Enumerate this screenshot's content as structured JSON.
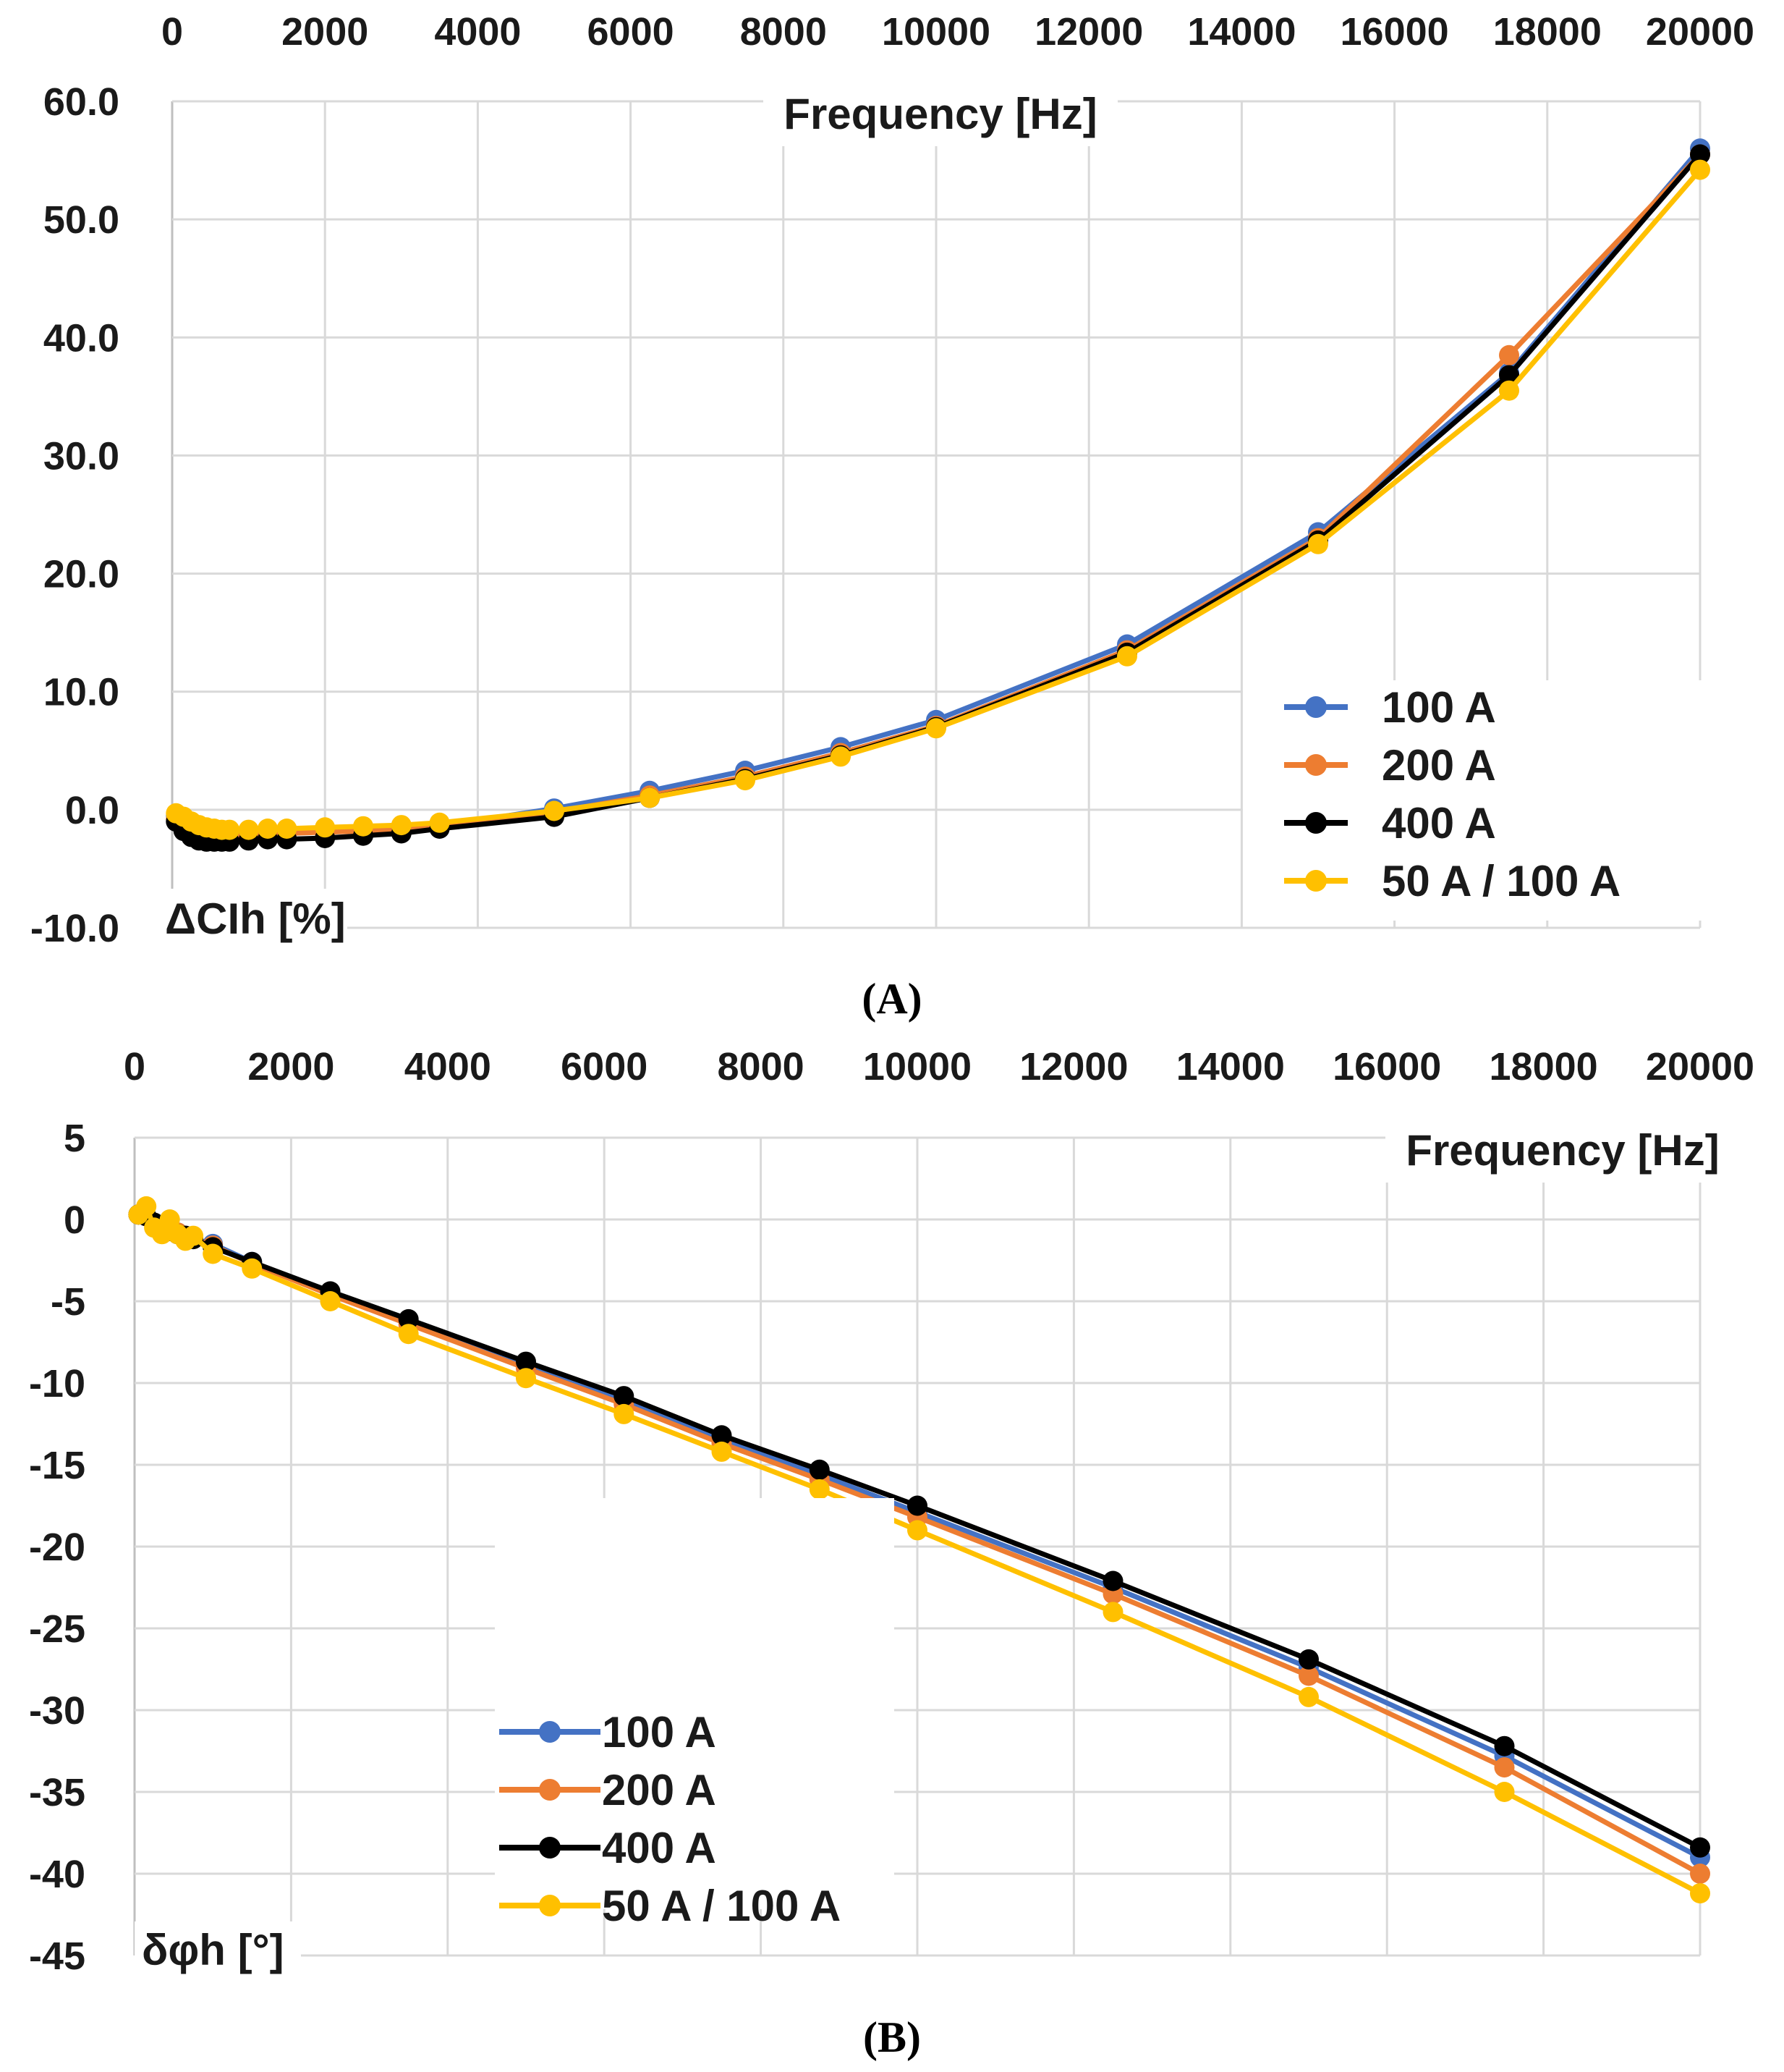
{
  "chart_data": [
    {
      "type": "line",
      "panel_label": "(A)",
      "xlabel": "Frequency [Hz]",
      "ylabel": "ΔCIh [%]",
      "xlim": [
        0,
        20000
      ],
      "ylim": [
        -10,
        60
      ],
      "x_ticks": [
        "0",
        "2000",
        "4000",
        "6000",
        "8000",
        "10000",
        "12000",
        "14000",
        "16000",
        "18000",
        "20000"
      ],
      "y_ticks": [
        "60.0",
        "50.0",
        "40.0",
        "30.0",
        "20.0",
        "10.0",
        "0.0",
        "-10.0"
      ],
      "legend_position": "bottom-right",
      "series": [
        {
          "name": "100 A",
          "color": "#4472C4",
          "x": [
            50,
            150,
            250,
            350,
            450,
            550,
            650,
            750,
            1000,
            1250,
            1500,
            2000,
            2500,
            3000,
            3500,
            5000,
            6250,
            7500,
            8750,
            10000,
            12500,
            15000,
            17500,
            20000
          ],
          "y": [
            -0.5,
            -1.2,
            -1.6,
            -1.8,
            -1.9,
            -2.0,
            -2.0,
            -2.0,
            -1.9,
            -1.9,
            -1.8,
            -1.8,
            -1.7,
            -1.6,
            -1.4,
            0.1,
            1.6,
            3.3,
            5.3,
            7.6,
            14.0,
            23.5,
            37.0,
            56.0
          ]
        },
        {
          "name": "200 A",
          "color": "#ED7D31",
          "x": [
            50,
            150,
            250,
            350,
            450,
            550,
            650,
            750,
            1000,
            1250,
            1500,
            2000,
            2500,
            3000,
            3500,
            5000,
            6250,
            7500,
            8750,
            10000,
            12500,
            15000,
            17500,
            20000
          ],
          "y": [
            -0.8,
            -1.5,
            -1.9,
            -2.1,
            -2.2,
            -2.2,
            -2.2,
            -2.2,
            -2.1,
            -2.0,
            -2.0,
            -1.9,
            -1.8,
            -1.7,
            -1.5,
            -0.2,
            1.2,
            2.8,
            4.8,
            7.1,
            13.5,
            23.0,
            38.5,
            55.5
          ]
        },
        {
          "name": "400 A",
          "color": "#000000",
          "x": [
            50,
            150,
            250,
            350,
            450,
            550,
            650,
            750,
            1000,
            1250,
            1500,
            2000,
            2500,
            3000,
            3500,
            5000,
            6250,
            7500,
            8750,
            10000,
            12500,
            15000,
            17500,
            20000
          ],
          "y": [
            -1.0,
            -1.8,
            -2.3,
            -2.6,
            -2.7,
            -2.7,
            -2.7,
            -2.7,
            -2.6,
            -2.5,
            -2.5,
            -2.4,
            -2.2,
            -2.0,
            -1.6,
            -0.6,
            1.0,
            2.6,
            4.6,
            7.0,
            13.3,
            22.8,
            36.8,
            55.5
          ]
        },
        {
          "name": "50 A / 100 A",
          "color": "#FFC000",
          "x": [
            50,
            150,
            250,
            350,
            450,
            550,
            650,
            750,
            1000,
            1250,
            1500,
            2000,
            2500,
            3000,
            3500,
            5000,
            6250,
            7500,
            8750,
            10000,
            12500,
            15000,
            17500,
            20000
          ],
          "y": [
            -0.3,
            -0.6,
            -1.0,
            -1.3,
            -1.5,
            -1.6,
            -1.7,
            -1.7,
            -1.7,
            -1.6,
            -1.6,
            -1.5,
            -1.4,
            -1.3,
            -1.1,
            -0.1,
            1.0,
            2.5,
            4.5,
            6.9,
            13.0,
            22.5,
            35.5,
            54.2
          ]
        }
      ]
    },
    {
      "type": "line",
      "panel_label": "(B)",
      "xlabel": "Frequency [Hz]",
      "ylabel": "δφh [°]",
      "xlim": [
        0,
        20000
      ],
      "ylim": [
        -45,
        5
      ],
      "x_ticks": [
        "0",
        "2000",
        "4000",
        "6000",
        "8000",
        "10000",
        "12000",
        "14000",
        "16000",
        "18000",
        "20000"
      ],
      "y_ticks": [
        "5",
        "0",
        "-5",
        "-10",
        "-15",
        "-20",
        "-25",
        "-30",
        "-35",
        "-40",
        "-45"
      ],
      "legend_position": "bottom-left",
      "series": [
        {
          "name": "100 A",
          "color": "#4472C4",
          "x": [
            50,
            150,
            250,
            350,
            450,
            550,
            650,
            750,
            1000,
            1500,
            2500,
            3500,
            5000,
            6250,
            7500,
            8750,
            10000,
            12500,
            15000,
            17500,
            20000
          ],
          "y": [
            0.3,
            0.2,
            -0.2,
            -0.4,
            -0.6,
            -0.8,
            -1.0,
            -1.2,
            -1.5,
            -2.6,
            -4.5,
            -6.2,
            -8.9,
            -11.0,
            -13.4,
            -15.6,
            -17.9,
            -22.5,
            -27.4,
            -32.8,
            -39.0
          ]
        },
        {
          "name": "200 A",
          "color": "#ED7D31",
          "x": [
            50,
            150,
            250,
            350,
            450,
            550,
            650,
            750,
            1000,
            1500,
            2500,
            3500,
            5000,
            6250,
            7500,
            8750,
            10000,
            12500,
            15000,
            17500,
            20000
          ],
          "y": [
            0.3,
            0.2,
            -0.2,
            -0.4,
            -0.6,
            -0.8,
            -1.0,
            -1.2,
            -1.6,
            -2.7,
            -4.6,
            -6.4,
            -9.1,
            -11.3,
            -13.7,
            -15.9,
            -18.2,
            -22.9,
            -27.9,
            -33.5,
            -40.0
          ]
        },
        {
          "name": "400 A",
          "color": "#000000",
          "x": [
            50,
            150,
            250,
            350,
            450,
            550,
            650,
            750,
            1000,
            1500,
            2500,
            3500,
            5000,
            6250,
            7500,
            8750,
            10000,
            12500,
            15000,
            17500,
            20000
          ],
          "y": [
            0.3,
            0.2,
            -0.2,
            -0.5,
            -0.7,
            -0.9,
            -1.0,
            -1.2,
            -1.7,
            -2.6,
            -4.4,
            -6.1,
            -8.7,
            -10.8,
            -13.2,
            -15.3,
            -17.5,
            -22.1,
            -26.9,
            -32.2,
            -38.4
          ]
        },
        {
          "name": "50 A / 100 A",
          "color": "#FFC000",
          "x": [
            50,
            150,
            250,
            350,
            450,
            550,
            650,
            750,
            1000,
            1500,
            2500,
            3500,
            5000,
            6250,
            7500,
            8750,
            10000,
            12500,
            15000,
            17500,
            20000
          ],
          "y": [
            0.3,
            0.8,
            -0.5,
            -0.9,
            0.0,
            -0.9,
            -1.3,
            -1.0,
            -2.1,
            -3.0,
            -5.0,
            -7.0,
            -9.7,
            -11.9,
            -14.2,
            -16.5,
            -19.0,
            -24.0,
            -29.2,
            -35.0,
            -41.2
          ]
        }
      ]
    }
  ]
}
